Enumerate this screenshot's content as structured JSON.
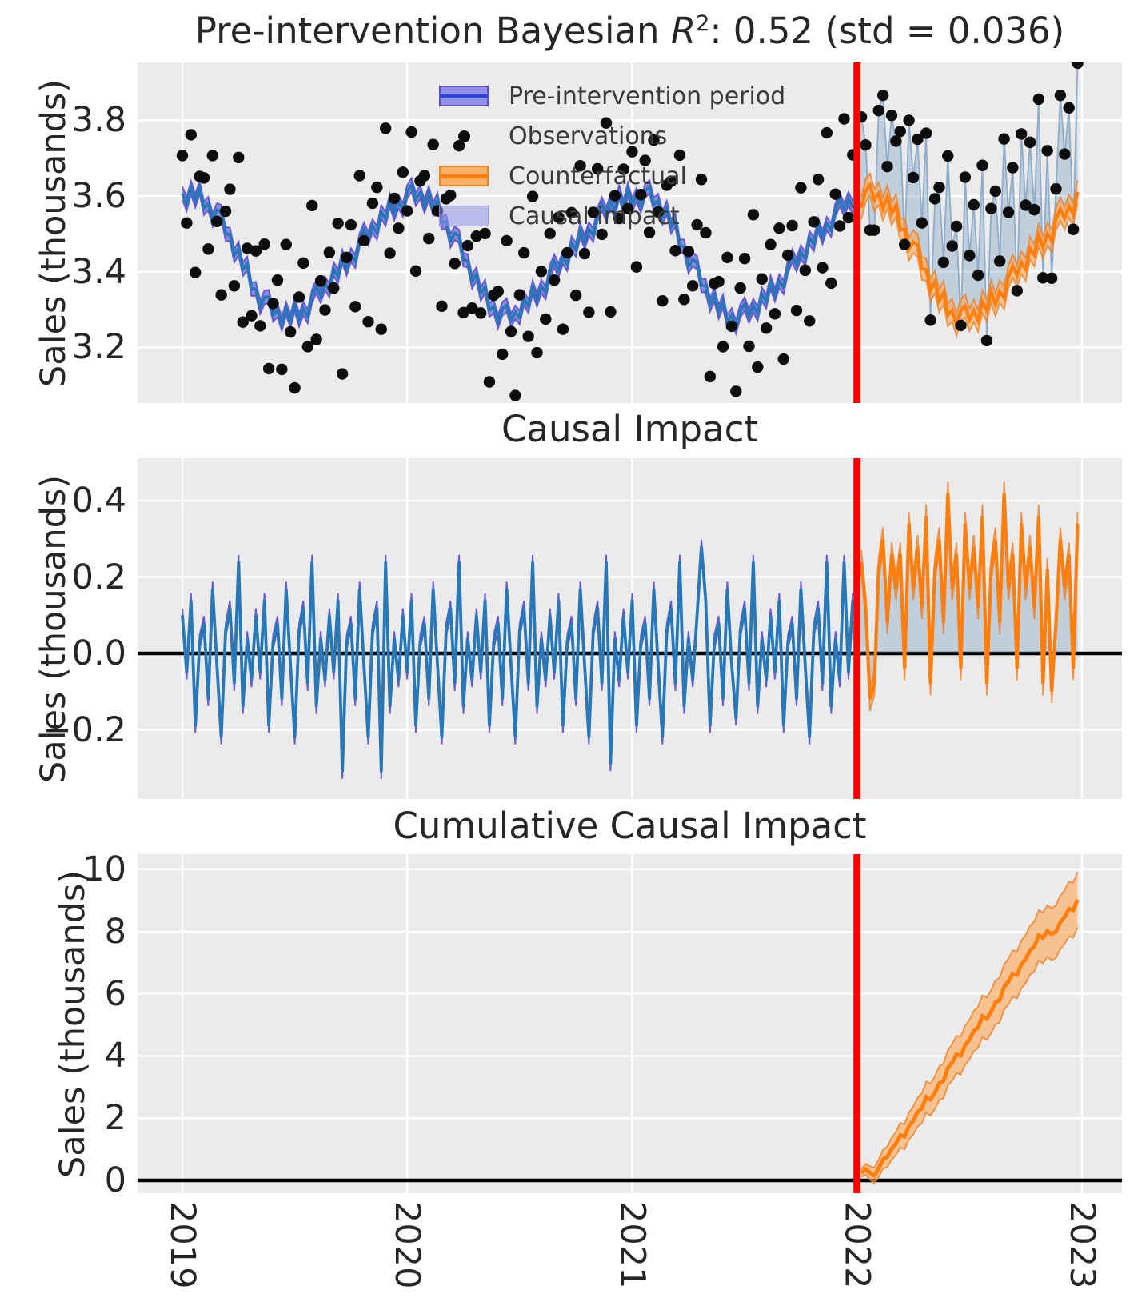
{
  "figure": {
    "panels": [
      {
        "id": "model",
        "title_parts": {
          "prefix": "Pre-intervention Bayesian ",
          "r_italic": "R",
          "superscript": "2",
          "suffix": ": 0.52 (std = 0.036)"
        },
        "ylabel": "Sales (thousands)",
        "ylim": [
          3.053,
          3.953
        ],
        "yticks": [
          {
            "value": 3.2,
            "label": "3.2"
          },
          {
            "value": 3.4,
            "label": "3.4"
          },
          {
            "value": 3.6,
            "label": "3.6"
          },
          {
            "value": 3.8,
            "label": "3.8"
          }
        ],
        "zero_line": false
      },
      {
        "id": "impact",
        "title": "Causal Impact",
        "ylabel": "Sales (thousands)",
        "ylim": [
          -0.381,
          0.511
        ],
        "yticks": [
          {
            "value": -0.2,
            "label": "−0.2"
          },
          {
            "value": 0.0,
            "label": "0.0"
          },
          {
            "value": 0.2,
            "label": "0.2"
          },
          {
            "value": 0.4,
            "label": "0.4"
          }
        ],
        "zero_line": true
      },
      {
        "id": "cumulative",
        "title": "Cumulative Causal Impact",
        "ylabel": "Sales (thousands)",
        "ylim": [
          -0.41,
          10.49
        ],
        "yticks": [
          {
            "value": 0,
            "label": "0"
          },
          {
            "value": 2,
            "label": "2"
          },
          {
            "value": 4,
            "label": "4"
          },
          {
            "value": 6,
            "label": "6"
          },
          {
            "value": 8,
            "label": "8"
          },
          {
            "value": 10,
            "label": "10"
          }
        ],
        "zero_line": true
      }
    ],
    "x_axis": {
      "xlim": [
        2018.801,
        2023.178
      ],
      "ticks": [
        {
          "value": 2019,
          "label": "2019"
        },
        {
          "value": 2020,
          "label": "2020"
        },
        {
          "value": 2021,
          "label": "2021"
        },
        {
          "value": 2022,
          "label": "2022"
        },
        {
          "value": 2023,
          "label": "2023"
        }
      ]
    },
    "legend": {
      "position": "upper-center",
      "items": [
        {
          "label": "Pre-intervention period",
          "marker": "band-blue"
        },
        {
          "label": "Observations",
          "marker": "dot"
        },
        {
          "label": "Counterfactual",
          "marker": "band-orange"
        },
        {
          "label": "Causal impact",
          "marker": "patch"
        }
      ]
    },
    "colors": {
      "background": "#ffffff",
      "panel_background": "#ebebeb",
      "grid": "#ffffff",
      "text": "#262626",
      "legend_text": "#3a3a3a",
      "model_line": "#2878b8",
      "model_band": "rgba(106,96,220,0.70)",
      "model_band_edge": "rgba(88,72,208,0.85)",
      "counterfactual_line": "#ff7f0e",
      "counterfactual_band": "rgba(253,166,86,0.60)",
      "counterfactual_band_edge": "rgba(235,126,32,0.75)",
      "impact_fill": "rgba(96,139,181,0.30)",
      "impact_line": "rgba(130,165,200,0.85)",
      "observations": "#0d0d0d",
      "zero_line": "#000000",
      "intervention_line": "#ff0000",
      "legend_blue_line": "#2a46d4",
      "legend_blue_band": "rgba(120,114,230,0.75)",
      "legend_blue_band_edge": "rgba(86,70,208,0.9)",
      "legend_orange_band": "rgba(250,166,86,0.85)",
      "legend_orange_band_edge": "rgba(240,130,30,0.9)",
      "legend_patch": "rgba(148,148,232,0.55)",
      "legend_patch_edge": "rgba(150,150,230,0.8)"
    }
  },
  "chart_data": {
    "type": "line",
    "x_unit": "decimal_year",
    "intervention_x": 2022.0,
    "r_squared": 0.52,
    "r_squared_std": 0.036,
    "pre": {
      "x_start": 2019.0,
      "x_step": 0.019231,
      "count": 156,
      "band_halfwidth": 0.018,
      "mu": [
        3.607,
        3.579,
        3.622,
        3.588,
        3.622,
        3.568,
        3.58,
        3.537,
        3.563,
        3.559,
        3.5,
        3.498,
        3.443,
        3.462,
        3.407,
        3.422,
        3.354,
        3.355,
        3.307,
        3.333,
        3.334,
        3.286,
        3.298,
        3.262,
        3.302,
        3.271,
        3.313,
        3.273,
        3.303,
        3.282,
        3.335,
        3.361,
        3.336,
        3.369,
        3.351,
        3.407,
        3.388,
        3.44,
        3.408,
        3.444,
        3.428,
        3.484,
        3.512,
        3.488,
        3.521,
        3.503,
        3.558,
        3.539,
        3.589,
        3.554,
        3.585,
        3.563,
        3.611,
        3.629,
        3.592,
        3.61,
        3.574,
        3.608,
        3.566,
        3.591,
        3.529,
        3.533,
        3.482,
        3.502,
        3.493,
        3.432,
        3.429,
        3.374,
        3.394,
        3.341,
        3.361,
        3.299,
        3.308,
        3.268,
        3.302,
        3.312,
        3.272,
        3.293,
        3.279,
        3.33,
        3.309,
        3.359,
        3.326,
        3.361,
        3.345,
        3.401,
        3.428,
        3.404,
        3.438,
        3.42,
        3.476,
        3.458,
        3.51,
        3.478,
        3.513,
        3.497,
        3.552,
        3.579,
        3.553,
        3.584,
        3.561,
        3.611,
        3.571,
        3.617,
        3.577,
        3.603,
        3.574,
        3.614,
        3.624,
        3.578,
        3.588,
        3.543,
        3.569,
        3.519,
        3.536,
        3.468,
        3.467,
        3.414,
        3.433,
        3.424,
        3.364,
        3.363,
        3.313,
        3.339,
        3.294,
        3.322,
        3.268,
        3.286,
        3.254,
        3.297,
        3.315,
        3.283,
        3.311,
        3.288,
        3.341,
        3.321,
        3.372,
        3.339,
        3.375,
        3.359,
        3.414,
        3.442,
        3.418,
        3.452,
        3.434,
        3.49,
        3.472,
        3.524,
        3.491,
        3.527,
        3.51,
        3.565,
        3.591,
        3.564,
        3.593,
        3.569
      ],
      "obs": [
        3.707,
        3.529,
        3.762,
        3.398,
        3.652,
        3.648,
        3.46,
        3.707,
        3.533,
        3.339,
        3.56,
        3.618,
        3.363,
        3.702,
        3.267,
        3.462,
        3.284,
        3.455,
        3.257,
        3.473,
        3.144,
        3.316,
        3.378,
        3.142,
        3.472,
        3.241,
        3.093,
        3.333,
        3.423,
        3.202,
        3.575,
        3.221,
        3.376,
        3.299,
        3.451,
        3.357,
        3.528,
        3.13,
        3.438,
        3.524,
        3.308,
        3.654,
        3.482,
        3.268,
        3.581,
        3.623,
        3.248,
        3.779,
        3.449,
        3.594,
        3.515,
        3.663,
        3.561,
        3.769,
        3.402,
        3.64,
        3.654,
        3.488,
        3.736,
        3.561,
        3.309,
        3.593,
        3.602,
        3.422,
        3.733,
        3.292,
        3.469,
        3.304,
        3.494,
        3.291,
        3.501,
        3.109,
        3.338,
        3.348,
        3.182,
        3.482,
        3.242,
        3.073,
        3.339,
        3.45,
        3.229,
        3.599,
        3.186,
        3.401,
        3.275,
        3.501,
        3.378,
        3.544,
        3.248,
        3.45,
        3.556,
        3.338,
        3.68,
        3.448,
        3.293,
        3.557,
        3.672,
        3.499,
        3.793,
        3.294,
        3.601,
        3.541,
        3.671,
        3.567,
        3.717,
        3.413,
        3.604,
        3.694,
        3.504,
        3.748,
        3.558,
        3.323,
        3.629,
        3.639,
        3.456,
        3.708,
        3.327,
        3.454,
        3.363,
        3.524,
        3.644,
        3.503,
        3.123,
        3.369,
        3.374,
        3.202,
        3.438,
        3.256,
        3.084,
        3.357,
        3.435,
        3.203,
        3.551,
        3.148,
        3.381,
        3.251,
        3.472,
        3.289,
        3.515,
        3.169,
        3.444,
        3.522,
        3.298,
        3.622,
        3.404,
        3.27,
        3.532,
        3.644,
        3.411,
        3.767,
        3.37,
        3.605,
        3.521,
        3.804,
        3.543,
        3.709
      ]
    },
    "post": {
      "x_start": 2022.019231,
      "x_step": 0.019231,
      "count": 51,
      "band_halfwidth": 0.03,
      "counterfactual": [
        3.569,
        3.615,
        3.63,
        3.59,
        3.606,
        3.566,
        3.598,
        3.553,
        3.575,
        3.511,
        3.512,
        3.46,
        3.479,
        3.47,
        3.409,
        3.406,
        3.352,
        3.373,
        3.323,
        3.345,
        3.286,
        3.298,
        3.26,
        3.298,
        3.31,
        3.273,
        3.297,
        3.271,
        3.321,
        3.298,
        3.347,
        3.313,
        3.348,
        3.331,
        3.387,
        3.415,
        3.39,
        3.424,
        3.406,
        3.462,
        3.444,
        3.496,
        3.464,
        3.5,
        3.483,
        3.539,
        3.566,
        3.541,
        3.573,
        3.552,
        3.611
      ],
      "obs": [
        3.809,
        3.735,
        3.51,
        3.51,
        3.826,
        3.866,
        3.678,
        3.813,
        3.745,
        3.771,
        3.472,
        3.8,
        3.649,
        3.75,
        3.529,
        3.766,
        3.272,
        3.593,
        3.623,
        3.425,
        3.706,
        3.468,
        3.52,
        3.258,
        3.65,
        3.443,
        3.577,
        3.391,
        3.681,
        3.218,
        3.567,
        3.613,
        3.428,
        3.751,
        3.557,
        3.675,
        3.35,
        3.764,
        3.576,
        3.742,
        3.564,
        3.856,
        3.384,
        3.72,
        3.383,
        3.619,
        3.866,
        3.711,
        3.833,
        3.512,
        3.951
      ]
    },
    "impact_note": "impact = obs - mu (pre-period, blue) and obs - counterfactual (post-period, orange)",
    "cumulative": {
      "band_halfwidth_scale": 0.125,
      "final_value": 9.03,
      "values": [
        0.24,
        0.36,
        0.24,
        0.16,
        0.38,
        0.68,
        0.76,
        1.02,
        1.19,
        1.45,
        1.41,
        1.75,
        1.92,
        2.2,
        2.32,
        2.68,
        2.6,
        2.82,
        3.12,
        3.2,
        3.62,
        3.79,
        4.05,
        4.01,
        4.35,
        4.52,
        4.8,
        4.92,
        5.28,
        5.2,
        5.42,
        5.72,
        5.8,
        6.22,
        6.39,
        6.65,
        6.61,
        6.95,
        7.12,
        7.4,
        7.52,
        7.88,
        7.8,
        8.02,
        7.92,
        8.0,
        8.3,
        8.47,
        8.73,
        8.69,
        9.03
      ]
    }
  }
}
